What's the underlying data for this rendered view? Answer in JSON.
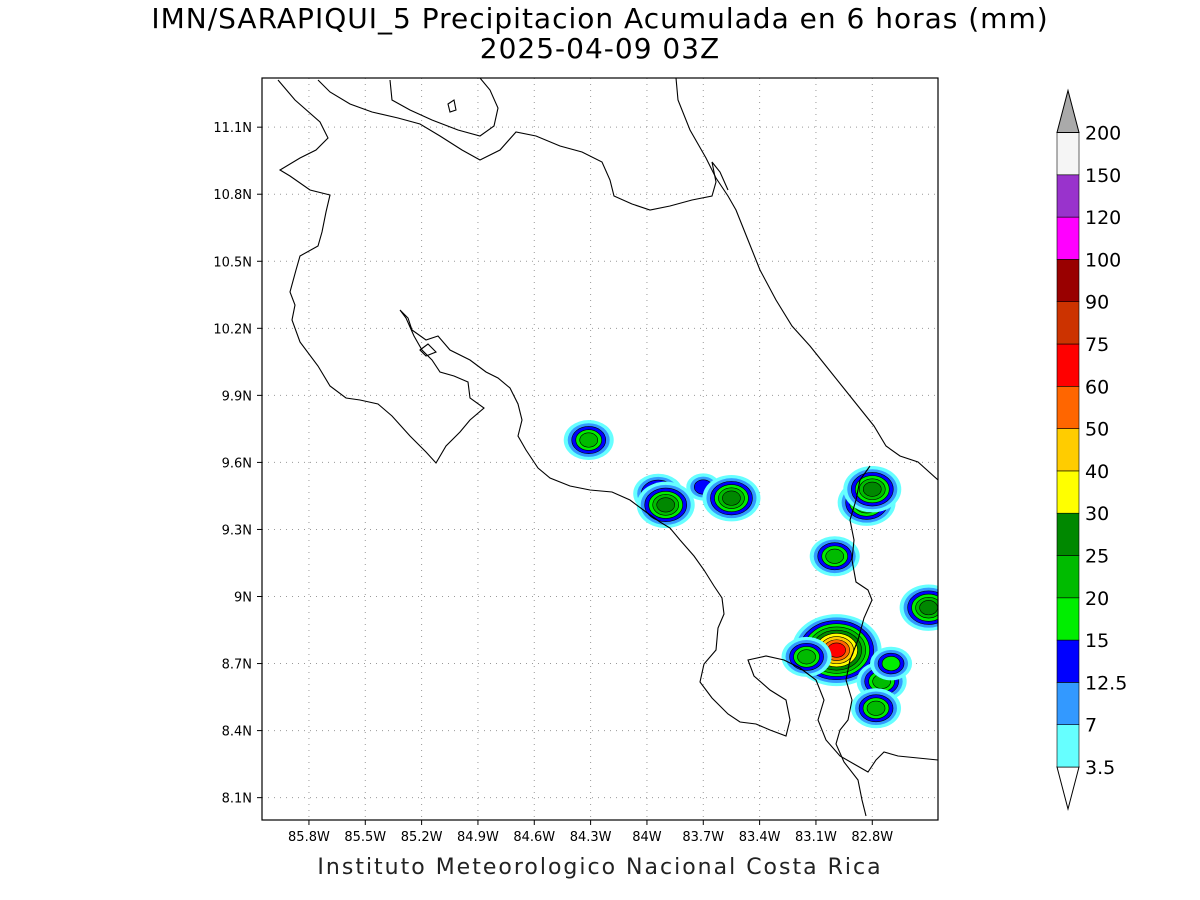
{
  "title": {
    "line1": "IMN/SARAPIQUI_5 Precipitacion Acumulada en 6 horas (mm)",
    "line2": "2025-04-09 03Z"
  },
  "footer": "Instituto Meteorologico Nacional Costa Rica",
  "map": {
    "lon_range": [
      -86.05,
      -82.45
    ],
    "lat_range": [
      8.0,
      11.32
    ],
    "gridlines": true,
    "x_ticks": [
      "85.8W",
      "85.5W",
      "85.2W",
      "84.9W",
      "84.6W",
      "84.3W",
      "84W",
      "83.7W",
      "83.4W",
      "83.1W",
      "82.8W"
    ],
    "x_tick_values": [
      -85.8,
      -85.5,
      -85.2,
      -84.9,
      -84.6,
      -84.3,
      -84.0,
      -83.7,
      -83.4,
      -83.1,
      -82.8
    ],
    "y_ticks": [
      "8.1N",
      "8.4N",
      "8.7N",
      "9N",
      "9.3N",
      "9.6N",
      "9.9N",
      "10.2N",
      "10.5N",
      "10.8N",
      "11.1N"
    ],
    "y_tick_values": [
      8.1,
      8.4,
      8.7,
      9.0,
      9.3,
      9.6,
      9.9,
      10.2,
      10.5,
      10.8,
      11.1
    ]
  },
  "colorbar": {
    "levels": [
      "3.5",
      "7",
      "12.5",
      "15",
      "20",
      "25",
      "30",
      "40",
      "50",
      "60",
      "75",
      "90",
      "100",
      "120",
      "150",
      "200"
    ],
    "colors": [
      "#66ffff",
      "#3399ff",
      "#0000ff",
      "#00ee00",
      "#00bb00",
      "#008800",
      "#ffff00",
      "#ffcc00",
      "#ff6600",
      "#ff0000",
      "#cc3300",
      "#990000",
      "#ff00ff",
      "#9933cc",
      "#f5f5f5",
      "#aaaaaa"
    ]
  },
  "precip_cells": [
    {
      "lon": -84.31,
      "lat": 9.7,
      "level": "20"
    },
    {
      "lon": -83.94,
      "lat": 9.46,
      "level": "20"
    },
    {
      "lon": -83.9,
      "lat": 9.41,
      "level": "25"
    },
    {
      "lon": -83.7,
      "lat": 9.49,
      "level": "12.5"
    },
    {
      "lon": -83.55,
      "lat": 9.44,
      "level": "25"
    },
    {
      "lon": -83.0,
      "lat": 9.18,
      "level": "20"
    },
    {
      "lon": -82.83,
      "lat": 9.42,
      "level": "25"
    },
    {
      "lon": -82.8,
      "lat": 9.48,
      "level": "25"
    },
    {
      "lon": -82.5,
      "lat": 8.95,
      "level": "25"
    },
    {
      "lon": -82.99,
      "lat": 8.76,
      "level": "60"
    },
    {
      "lon": -83.15,
      "lat": 8.73,
      "level": "20"
    },
    {
      "lon": -82.75,
      "lat": 8.62,
      "level": "20"
    },
    {
      "lon": -82.7,
      "lat": 8.7,
      "level": "15"
    },
    {
      "lon": -82.78,
      "lat": 8.5,
      "level": "20"
    }
  ]
}
